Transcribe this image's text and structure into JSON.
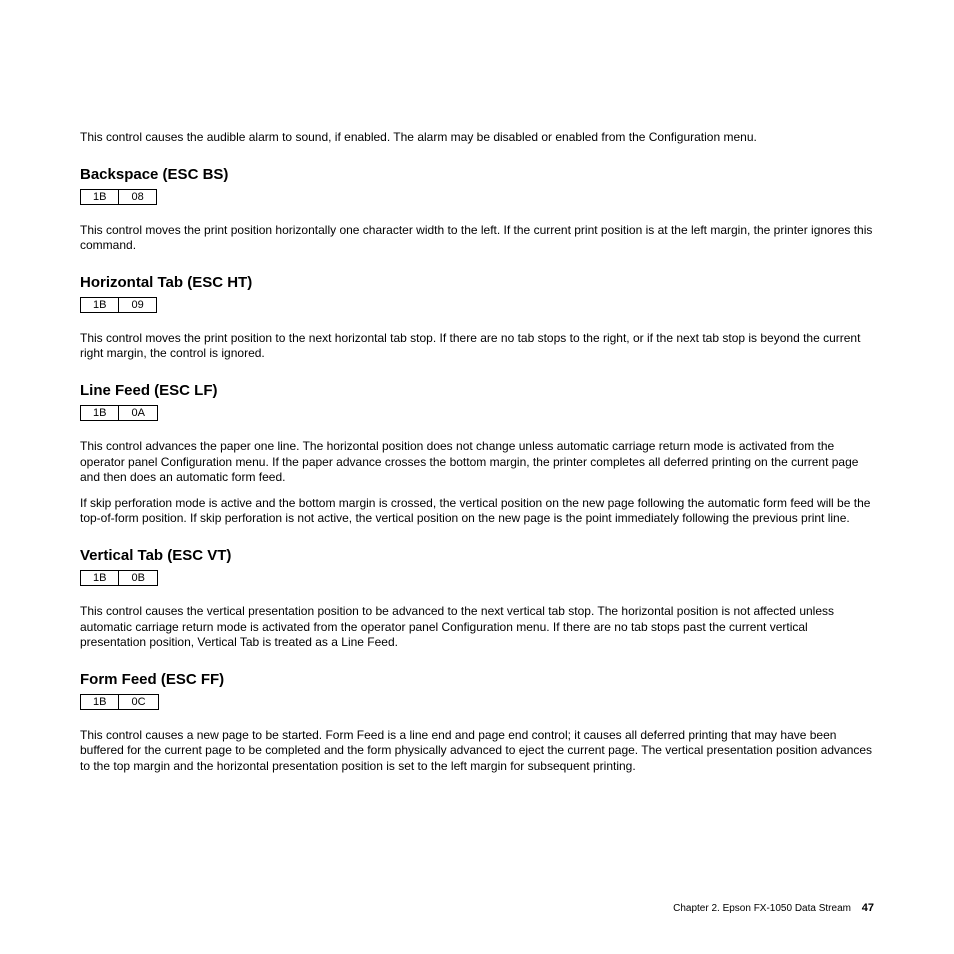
{
  "intro": "This control causes the audible alarm to sound, if enabled. The alarm may be disabled or enabled from the Configuration menu.",
  "sections": [
    {
      "heading": "Backspace (ESC BS)",
      "bytes": [
        "1B",
        "08"
      ],
      "paras": [
        "This control moves the print position horizontally one character width to the left. If the current print position is at the left margin, the printer ignores this command."
      ]
    },
    {
      "heading": "Horizontal Tab (ESC HT)",
      "bytes": [
        "1B",
        "09"
      ],
      "paras": [
        "This control moves the print position to the next horizontal tab stop. If there are no tab stops to the right, or if the next tab stop is beyond the current right margin, the control is ignored."
      ]
    },
    {
      "heading": "Line Feed (ESC LF)",
      "bytes": [
        "1B",
        "0A"
      ],
      "paras": [
        "This control advances the paper one line. The horizontal position does not change unless automatic carriage return mode is activated from the operator panel Configuration menu. If the paper advance crosses the bottom margin, the printer completes all deferred printing on the current page and then does an automatic form feed.",
        "If skip perforation mode is active and the bottom margin is crossed, the vertical position on the new page following the automatic form feed will be the top-of-form position. If skip perforation is not active, the vertical position on the new page is the point immediately following the previous print line."
      ]
    },
    {
      "heading": "Vertical Tab (ESC VT)",
      "bytes": [
        "1B",
        "0B"
      ],
      "paras": [
        "This control causes the vertical presentation position to be advanced to the next vertical tab stop. The horizontal position is not affected unless automatic carriage return mode is activated from the operator panel Configuration menu. If there are no tab stops past the current vertical presentation position, Vertical Tab is treated as a Line Feed."
      ]
    },
    {
      "heading": "Form Feed (ESC FF)",
      "bytes": [
        "1B",
        "0C"
      ],
      "paras": [
        "This control causes a new page to be started. Form Feed is a line end and page end control; it causes all deferred printing that may have been buffered for the current page to be completed and the form physically advanced to eject the current page. The vertical presentation position advances to the top margin and the horizontal presentation position is set to the left margin for subsequent printing."
      ]
    }
  ],
  "footer": {
    "chapter": "Chapter 2. Epson FX-1050 Data Stream",
    "page": "47"
  }
}
